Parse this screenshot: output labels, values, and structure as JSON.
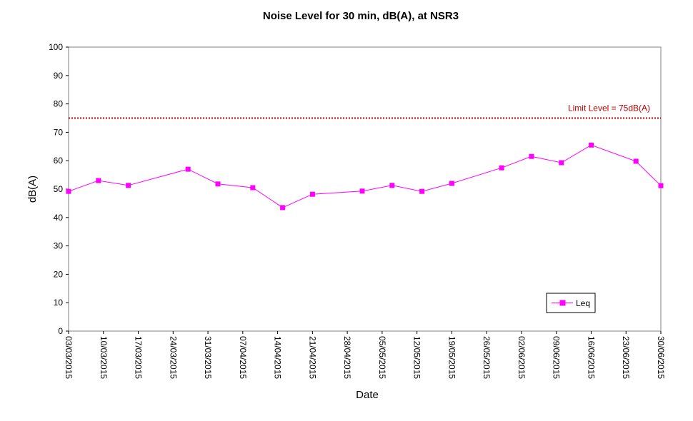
{
  "chart_data": {
    "type": "line",
    "title": "Noise Level for 30 min, dB(A), at NSR3",
    "xlabel": "Date",
    "ylabel": "dB(A)",
    "ylim": [
      0,
      100
    ],
    "yticks": [
      0,
      10,
      20,
      30,
      40,
      50,
      60,
      70,
      80,
      90,
      100
    ],
    "xlim": [
      "2015-03-03",
      "2015-06-30"
    ],
    "xtick_labels": [
      "03/03/2015",
      "10/03/2015",
      "17/03/2015",
      "24/03/2015",
      "31/03/2015",
      "07/04/2015",
      "14/04/2015",
      "21/04/2015",
      "28/04/2015",
      "05/05/2015",
      "12/05/2015",
      "19/05/2015",
      "26/05/2015",
      "02/06/2015",
      "09/06/2015",
      "16/06/2015",
      "23/06/2015",
      "30/06/2015"
    ],
    "grid": false,
    "legend_position": "bottom-right",
    "limit_line": {
      "value": 75,
      "label": "Limit Level  = 75dB(A)",
      "color": "#c00000",
      "style": "dotted"
    },
    "series": [
      {
        "name": "Leq",
        "color": "#ff00ff",
        "marker": "square",
        "points": [
          {
            "x": "2015-03-03",
            "y": 49.2
          },
          {
            "x": "2015-03-09",
            "y": 53.0
          },
          {
            "x": "2015-03-15",
            "y": 51.3
          },
          {
            "x": "2015-03-27",
            "y": 57.0
          },
          {
            "x": "2015-04-02",
            "y": 51.8
          },
          {
            "x": "2015-04-09",
            "y": 50.5
          },
          {
            "x": "2015-04-15",
            "y": 43.5
          },
          {
            "x": "2015-04-21",
            "y": 48.2
          },
          {
            "x": "2015-05-01",
            "y": 49.3
          },
          {
            "x": "2015-05-07",
            "y": 51.3
          },
          {
            "x": "2015-05-13",
            "y": 49.2
          },
          {
            "x": "2015-05-19",
            "y": 52.0
          },
          {
            "x": "2015-05-29",
            "y": 57.5
          },
          {
            "x": "2015-06-04",
            "y": 61.5
          },
          {
            "x": "2015-06-10",
            "y": 59.3
          },
          {
            "x": "2015-06-16",
            "y": 65.5
          },
          {
            "x": "2015-06-25",
            "y": 59.8
          },
          {
            "x": "2015-06-30",
            "y": 51.2
          }
        ]
      }
    ]
  }
}
